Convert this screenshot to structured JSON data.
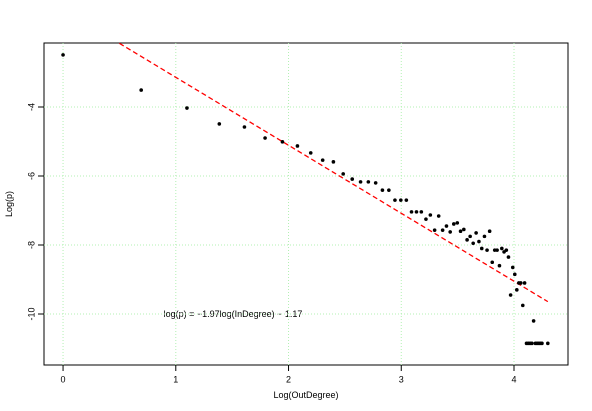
{
  "chart_data": {
    "type": "scatter",
    "annotation": "log(p) = −1.97log(InDegree) − 1.17",
    "x_label": "Log(OutDegree)",
    "y_label": "Log(p)",
    "color": "#000000",
    "x": [
      0,
      0.693,
      1.099,
      1.386,
      1.609,
      1.792,
      1.946,
      2.079,
      2.197,
      2.303,
      2.398,
      2.485,
      2.565,
      2.639,
      2.708,
      2.773,
      2.833,
      2.89,
      2.944,
      2.996,
      3.045,
      3.091,
      3.135,
      3.178,
      3.219,
      3.258,
      3.296,
      3.332,
      3.367,
      3.401,
      3.434,
      3.466,
      3.497,
      3.526,
      3.555,
      3.584,
      3.611,
      3.638,
      3.664,
      3.689,
      3.714,
      3.738,
      3.761,
      3.784,
      3.807,
      3.829,
      3.85,
      3.871,
      3.892,
      3.912,
      3.932,
      3.951,
      3.97,
      3.989,
      4.007,
      4.025,
      4.043,
      4.06,
      4.078,
      4.094,
      4.111,
      4.127,
      4.143,
      4.159,
      4.174,
      4.19,
      4.205,
      4.22,
      4.234,
      4.248,
      4.3
    ],
    "values": [
      -2.49,
      -3.51,
      -4.03,
      -4.49,
      -4.58,
      -4.9,
      -5.01,
      -5.13,
      -5.33,
      -5.54,
      -5.59,
      -5.94,
      -6.09,
      -6.17,
      -6.17,
      -6.2,
      -6.41,
      -6.41,
      -6.7,
      -6.7,
      -6.7,
      -7.04,
      -7.04,
      -7.04,
      -7.25,
      -7.13,
      -7.57,
      -7.16,
      -7.57,
      -7.45,
      -7.62,
      -7.39,
      -7.36,
      -7.6,
      -7.55,
      -7.85,
      -7.75,
      -7.95,
      -7.65,
      -7.9,
      -8.1,
      -7.75,
      -8.15,
      -7.6,
      -8.5,
      -8.15,
      -8.15,
      -8.6,
      -8.1,
      -8.2,
      -8.15,
      -8.35,
      -9.45,
      -8.65,
      -8.85,
      -9.3,
      -9.1,
      -9.1,
      -9.75,
      -9.1,
      -10.85,
      -10.85,
      -10.85,
      -10.85,
      -10.2,
      -10.85,
      -10.85,
      -10.85,
      -10.85,
      -10.85,
      -10.85
    ],
    "fit_line": {
      "x": [
        0.5,
        4.3
      ],
      "values": [
        -2.155,
        -9.641
      ],
      "color": "#ff0000"
    },
    "xlim": [
      -0.169,
      4.479
    ],
    "ylim": [
      -11.478,
      -2.145
    ],
    "xticks": [
      0,
      1,
      2,
      3,
      4
    ],
    "yticks": [
      -4,
      -6,
      -8,
      -10
    ],
    "grid": true,
    "grid_color": "#b3f0b3"
  }
}
